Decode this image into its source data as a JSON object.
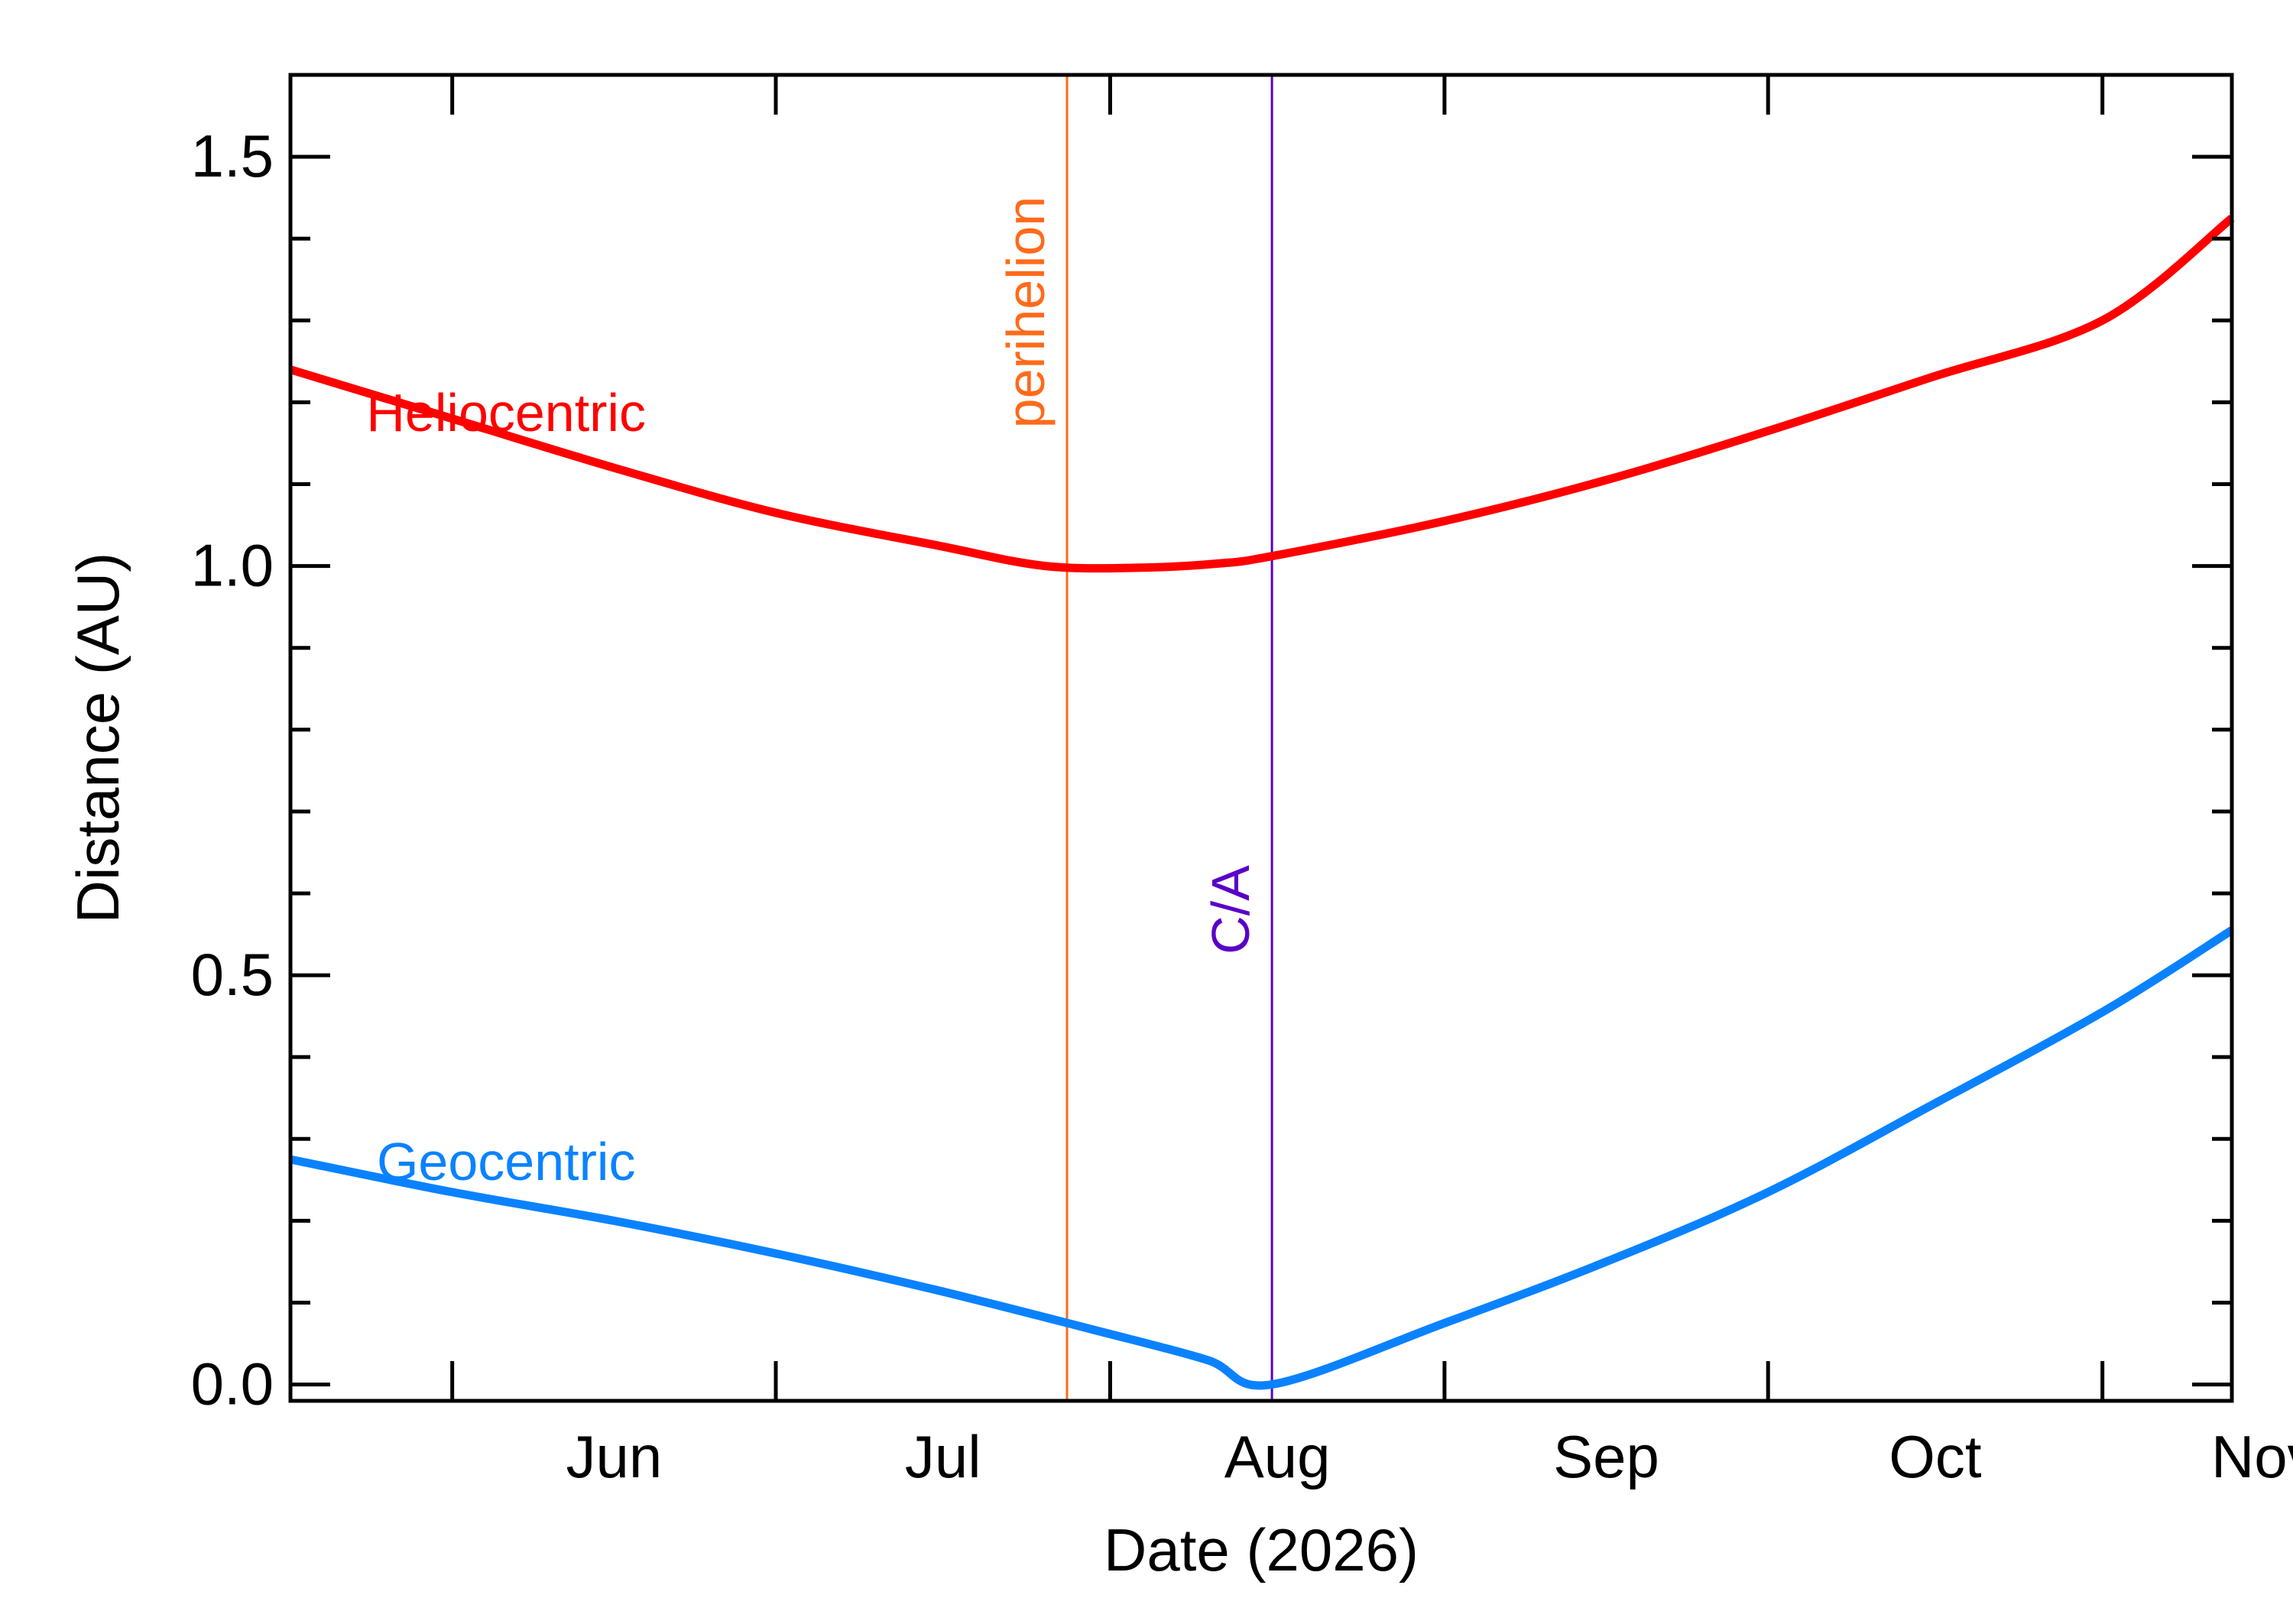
{
  "chart_data": {
    "type": "line",
    "xlabel": "Date (2026)",
    "ylabel": "Distance (AU)",
    "x_range": [
      "2026-05-17",
      "2026-11-13"
    ],
    "ylim": [
      -0.02,
      1.6
    ],
    "y_ticks": [
      0.0,
      0.5,
      1.0,
      1.5
    ],
    "y_tick_labels": [
      "0.0",
      "0.5",
      "1.0",
      "1.5"
    ],
    "y_minor_step": 0.1,
    "x_ticks": [
      {
        "date": "2026-06-01",
        "label": "Jun"
      },
      {
        "date": "2026-07-01",
        "label": "Jul"
      },
      {
        "date": "2026-08-01",
        "label": "Aug"
      },
      {
        "date": "2026-09-01",
        "label": "Sep"
      },
      {
        "date": "2026-10-01",
        "label": "Oct"
      },
      {
        "date": "2026-11-01",
        "label": "Nov"
      }
    ],
    "series": [
      {
        "name": "Heliocentric",
        "color": "#ff0000",
        "label_at": {
          "date": "2026-06-06",
          "value": 1.165
        },
        "points": [
          [
            "2026-05-17",
            1.24
          ],
          [
            "2026-06-01",
            1.18
          ],
          [
            "2026-06-16",
            1.12
          ],
          [
            "2026-07-01",
            1.065
          ],
          [
            "2026-07-16",
            1.025
          ],
          [
            "2026-07-26",
            1.0
          ],
          [
            "2026-08-04",
            0.998
          ],
          [
            "2026-08-11",
            1.003
          ],
          [
            "2026-08-16",
            1.012
          ],
          [
            "2026-09-01",
            1.055
          ],
          [
            "2026-09-16",
            1.105
          ],
          [
            "2026-10-01",
            1.165
          ],
          [
            "2026-10-16",
            1.23
          ],
          [
            "2026-11-01",
            1.3
          ],
          [
            "2026-11-13",
            1.425
          ]
        ]
      },
      {
        "name": "Geocentric",
        "color": "#0a82ff",
        "label_at": {
          "date": "2026-06-06",
          "value": 0.25
        },
        "points": [
          [
            "2026-05-17",
            0.275
          ],
          [
            "2026-06-01",
            0.235
          ],
          [
            "2026-06-16",
            0.2
          ],
          [
            "2026-07-01",
            0.16
          ],
          [
            "2026-07-16",
            0.115
          ],
          [
            "2026-07-31",
            0.065
          ],
          [
            "2026-08-10",
            0.03
          ],
          [
            "2026-08-16",
            0.0
          ],
          [
            "2026-09-01",
            0.075
          ],
          [
            "2026-09-16",
            0.15
          ],
          [
            "2026-10-01",
            0.235
          ],
          [
            "2026-10-16",
            0.34
          ],
          [
            "2026-11-01",
            0.455
          ],
          [
            "2026-11-13",
            0.555
          ]
        ]
      }
    ],
    "vlines": [
      {
        "date": "2026-07-28",
        "label": "perihelion",
        "color": "#ff6a1a",
        "label_value": 1.31
      },
      {
        "date": "2026-08-16",
        "label": "C/A",
        "color": "#5a00c8",
        "label_value": 0.58
      }
    ]
  }
}
